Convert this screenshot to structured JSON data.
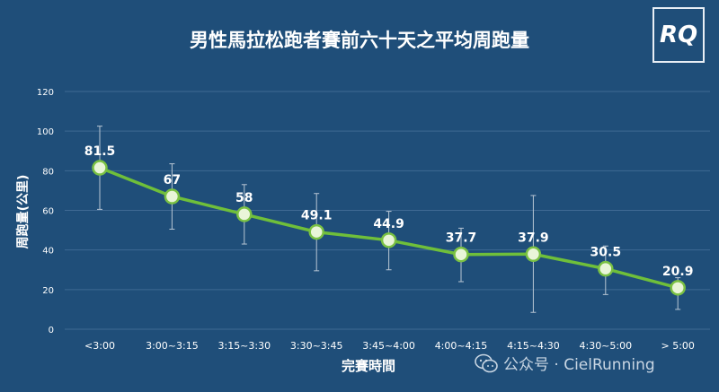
{
  "logo_text": "RQ",
  "watermark": {
    "text": "公众号 · CielRunning",
    "icon": "wechat-icon"
  },
  "colors": {
    "background": "#1f4e79",
    "line": "#6fbf3a",
    "marker_fill": "#e9f5d8",
    "marker_stroke": "#7ac143",
    "text": "#ffffff",
    "grid": "#3f6a93",
    "error_bar": "#b8c6d4"
  },
  "chart_data": {
    "type": "line",
    "title": "男性馬拉松跑者賽前六十天之平均周跑量",
    "xlabel": "完賽時間",
    "ylabel": "周跑量(公里)",
    "categories": [
      "<3:00",
      "3:00~3:15",
      "3:15~3:30",
      "3:30~3:45",
      "3:45~4:00",
      "4:00~4:15",
      "4:15~4:30",
      "4:30~5:00",
      "> 5:00"
    ],
    "series": [
      {
        "values": [
          81.5,
          67,
          58,
          49.1,
          44.9,
          37.7,
          37.9,
          30.5,
          20.9
        ],
        "labels": [
          "81.5",
          "67",
          "58",
          "49.1",
          "44.9",
          "37.7",
          "37.9",
          "30.5",
          "20.9"
        ],
        "error_low": [
          60.5,
          50.5,
          43,
          29.5,
          30,
          24,
          8.5,
          17.5,
          10
        ],
        "error_high": [
          102.5,
          83.5,
          73,
          68.5,
          59.5,
          51,
          67.5,
          42,
          26
        ]
      }
    ],
    "ylim": [
      0,
      120
    ],
    "yticks": [
      "0",
      "20",
      "40",
      "60",
      "80",
      "100",
      "120"
    ],
    "grid": true,
    "legend": "none"
  }
}
